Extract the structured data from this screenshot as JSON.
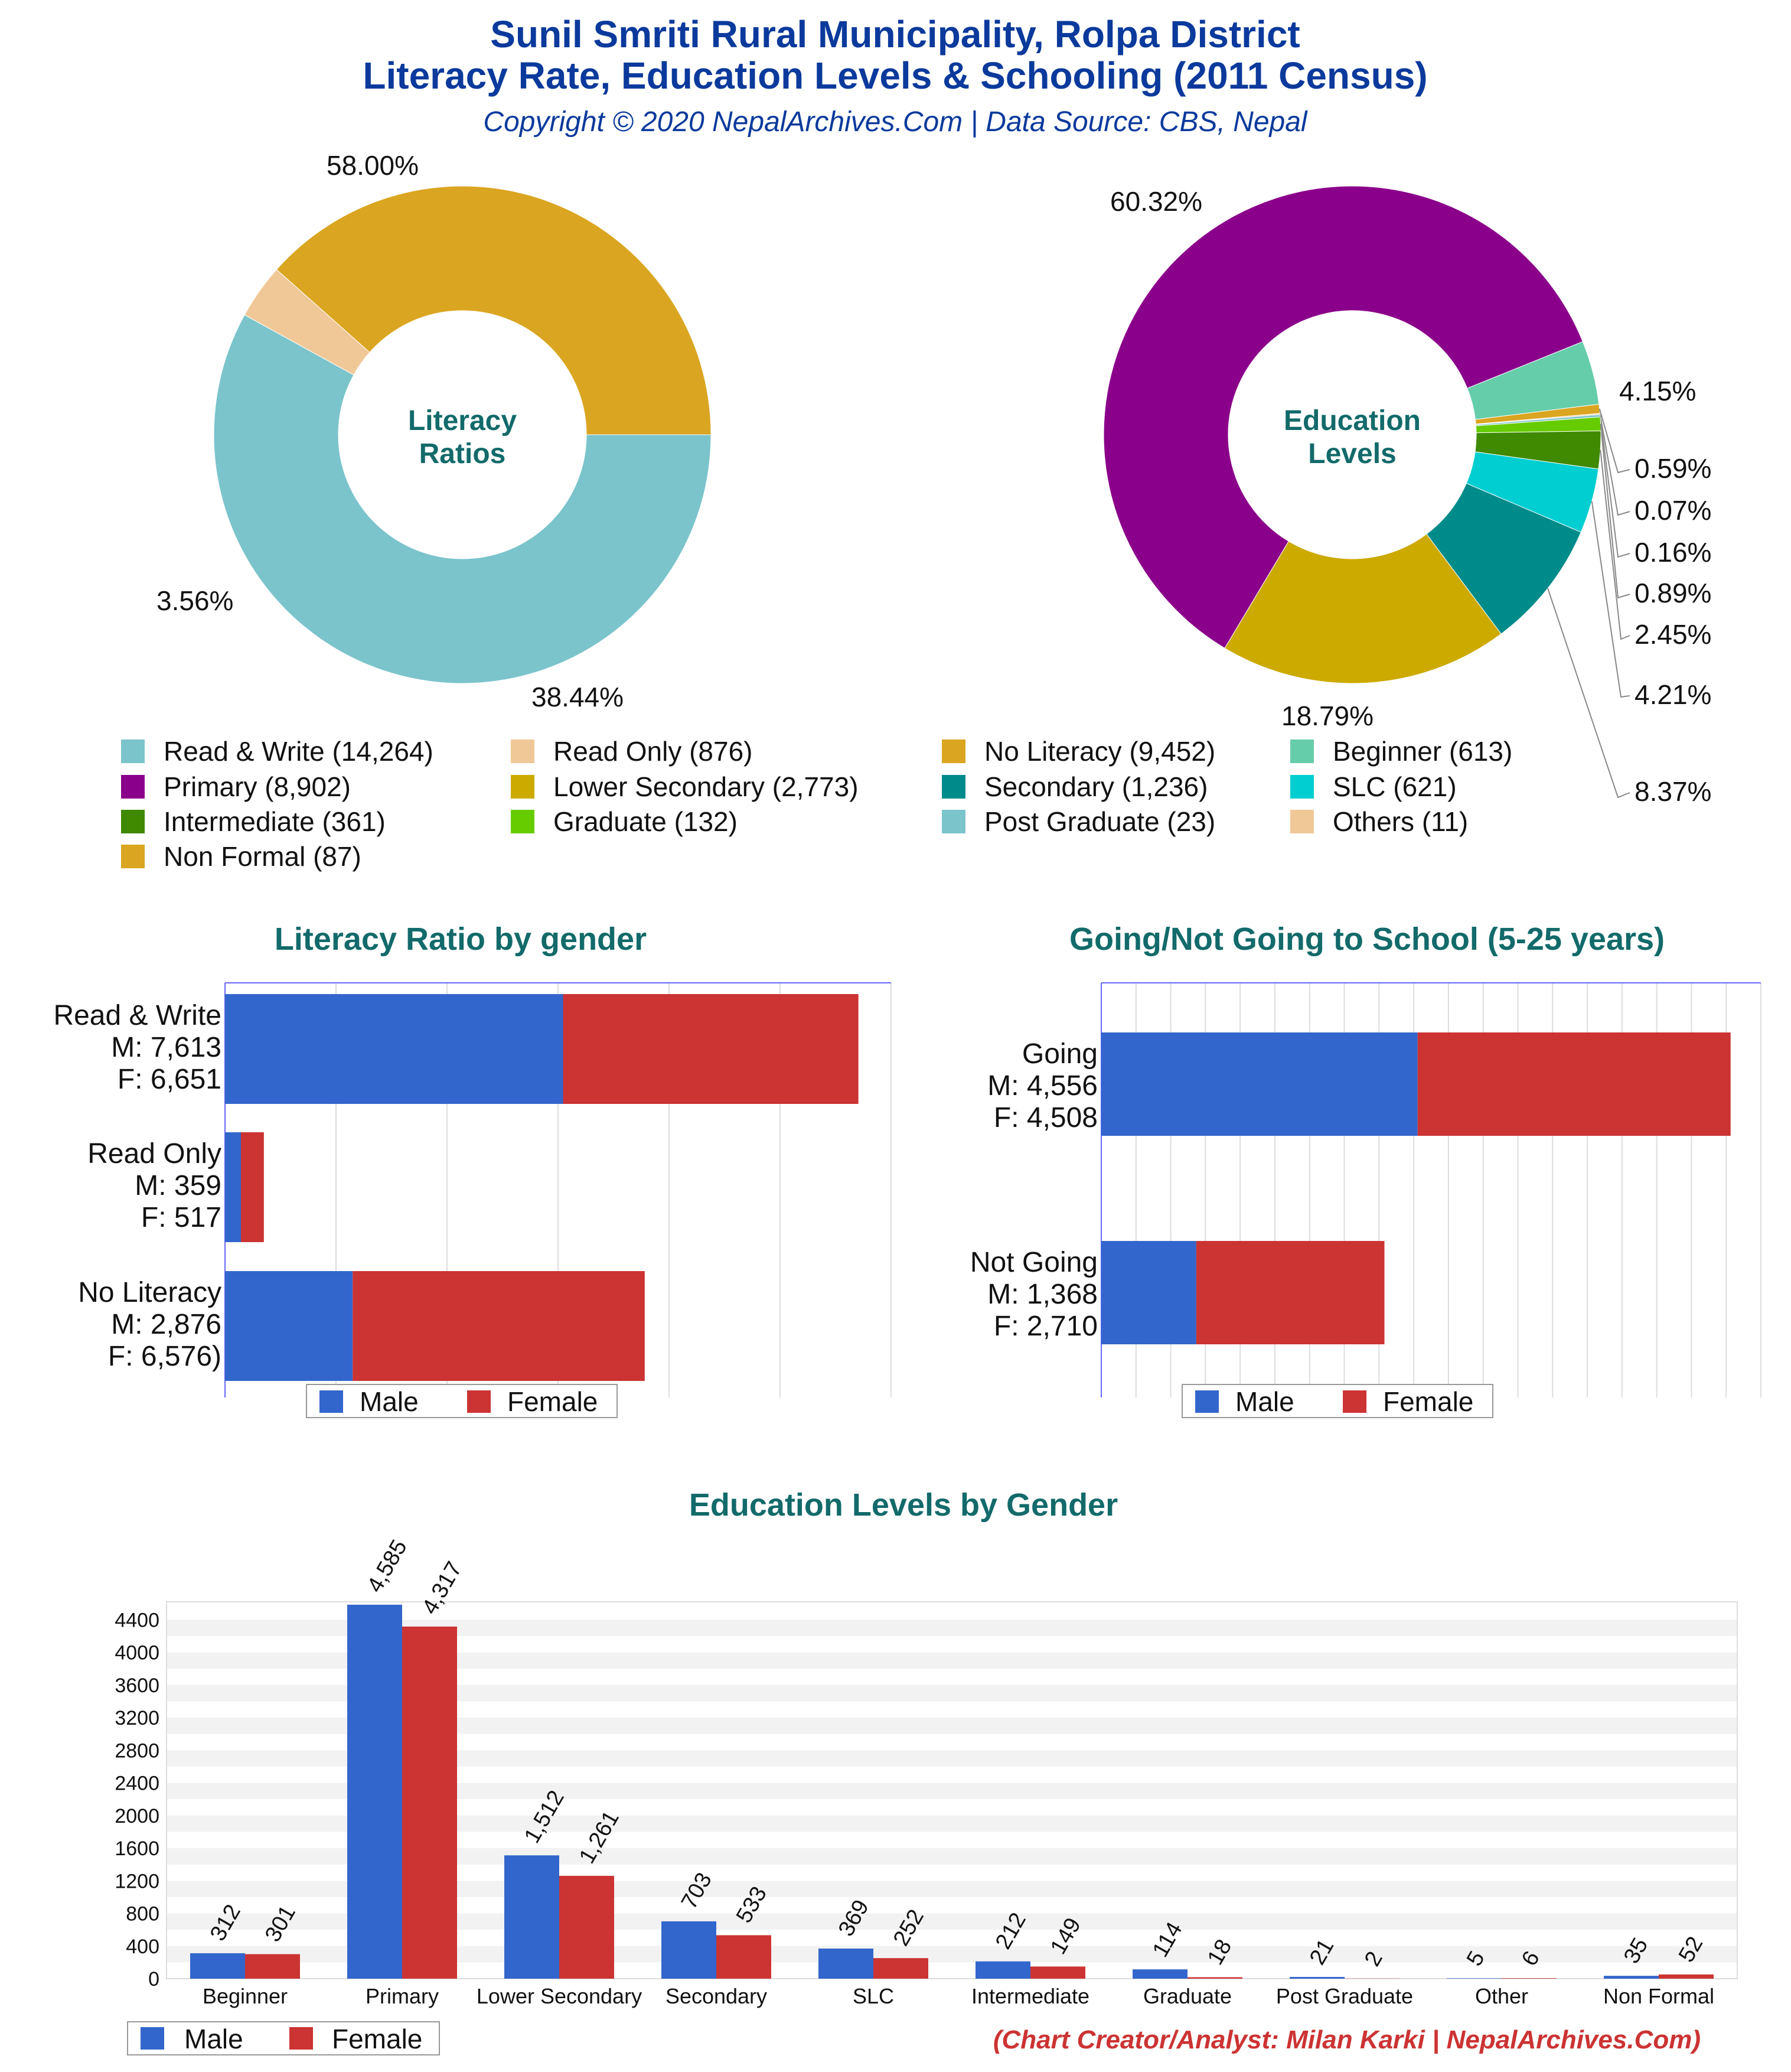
{
  "header": {
    "title_line1": "Sunil Smriti Rural Municipality, Rolpa District",
    "title_line2": "Literacy Rate, Education Levels & Schooling (2011 Census)",
    "subtitle": "Copyright © 2020 NepalArchives.Com | Data Source: CBS, Nepal"
  },
  "footer": {
    "credit": "(Chart Creator/Analyst: Milan Karki | NepalArchives.Com)"
  },
  "colors": {
    "title": "#0b3a9c",
    "heading": "#136a6a",
    "male": "#3366cc",
    "female": "#cc3333",
    "credit": "#cc3333"
  },
  "chart_data": [
    {
      "type": "pie",
      "title": "Literacy Ratios",
      "center_label": [
        "Literacy",
        "Ratios"
      ],
      "slices": [
        {
          "name": "Read & Write",
          "value": 14264,
          "pct_label": "58.00%",
          "color": "#7bc4cc"
        },
        {
          "name": "Read Only",
          "value": 876,
          "pct_label": "3.56%",
          "color": "#f0c897"
        },
        {
          "name": "No Literacy",
          "value": 9452,
          "pct_label": "38.44%",
          "color": "#daa520"
        }
      ]
    },
    {
      "type": "pie",
      "title": "Education Levels",
      "center_label": [
        "Education",
        "Levels"
      ],
      "slices": [
        {
          "name": "Beginner",
          "value": 613,
          "pct_label": "4.15%",
          "color": "#66cdaa"
        },
        {
          "name": "Non Formal",
          "value": 87,
          "pct_label": "0.59%",
          "color": "#daa520"
        },
        {
          "name": "Others",
          "value": 11,
          "pct_label": "0.07%",
          "color": "#f0c897"
        },
        {
          "name": "Post Graduate",
          "value": 23,
          "pct_label": "0.16%",
          "color": "#7bc4cc"
        },
        {
          "name": "Graduate",
          "value": 132,
          "pct_label": "0.89%",
          "color": "#66cc00"
        },
        {
          "name": "Intermediate",
          "value": 361,
          "pct_label": "2.45%",
          "color": "#3f8a00"
        },
        {
          "name": "SLC",
          "value": 621,
          "pct_label": "4.21%",
          "color": "#00ced1"
        },
        {
          "name": "Secondary",
          "value": 1236,
          "pct_label": "8.37%",
          "color": "#008b8b"
        },
        {
          "name": "Lower Secondary",
          "value": 2773,
          "pct_label": "18.79%",
          "color": "#ccaa00"
        },
        {
          "name": "Primary",
          "value": 8902,
          "pct_label": "60.32%",
          "color": "#8b008b"
        }
      ]
    },
    {
      "type": "bar",
      "orientation": "horizontal",
      "stacked": true,
      "title": "Literacy Ratio by gender",
      "categories": [
        {
          "lines": [
            "Read & Write",
            "M: 7,613",
            "F: 6,651"
          ]
        },
        {
          "lines": [
            "Read Only",
            "M: 359",
            "F: 517"
          ]
        },
        {
          "lines": [
            "No Literacy",
            "M: 2,876",
            "F: 6,576)"
          ]
        }
      ],
      "series": [
        {
          "name": "Male",
          "values": [
            7613,
            359,
            2876
          ]
        },
        {
          "name": "Female",
          "values": [
            6651,
            517,
            6576
          ]
        }
      ],
      "xlim": [
        0,
        15000
      ],
      "legend": "bottom"
    },
    {
      "type": "bar",
      "orientation": "horizontal",
      "stacked": true,
      "title": "Going/Not Going to School (5-25 years)",
      "categories": [
        {
          "lines": [
            "Going",
            "M: 4,556",
            "F: 4,508"
          ]
        },
        {
          "lines": [
            "Not Going",
            "M: 1,368",
            "F: 2,710"
          ]
        }
      ],
      "series": [
        {
          "name": "Male",
          "values": [
            4556,
            1368
          ]
        },
        {
          "name": "Female",
          "values": [
            4508,
            2710
          ]
        }
      ],
      "xlim": [
        0,
        9500
      ],
      "legend": "bottom"
    },
    {
      "type": "bar",
      "orientation": "vertical",
      "title": "Education Levels by Gender",
      "categories": [
        "Beginner",
        "Primary",
        "Lower Secondary",
        "Secondary",
        "SLC",
        "Intermediate",
        "Graduate",
        "Post Graduate",
        "Other",
        "Non Formal"
      ],
      "series": [
        {
          "name": "Male",
          "values": [
            312,
            4585,
            1512,
            703,
            369,
            212,
            114,
            21,
            5,
            35
          ],
          "labels": [
            "312",
            "4,585",
            "1,512",
            "703",
            "369",
            "212",
            "114",
            "21",
            "5",
            "35"
          ]
        },
        {
          "name": "Female",
          "values": [
            301,
            4317,
            1261,
            533,
            252,
            149,
            18,
            2,
            6,
            52
          ],
          "labels": [
            "301",
            "4,317",
            "1,261",
            "533",
            "252",
            "149",
            "18",
            "2",
            "6",
            "52"
          ]
        }
      ],
      "yticks": [
        "0",
        "400",
        "800",
        "1200",
        "1600",
        "2000",
        "2400",
        "2800",
        "3200",
        "3600",
        "4000",
        "4400"
      ],
      "ylim": [
        0,
        4620
      ],
      "legend": "bottom-left"
    }
  ],
  "legend_main": {
    "entries": [
      {
        "label": "Read & Write (14,264)",
        "color": "#7bc4cc"
      },
      {
        "label": "Read Only (876)",
        "color": "#f0c897"
      },
      {
        "label": "No Literacy (9,452)",
        "color": "#daa520"
      },
      {
        "label": "Beginner (613)",
        "color": "#66cdaa"
      },
      {
        "label": "Primary (8,902)",
        "color": "#8b008b"
      },
      {
        "label": "Lower Secondary (2,773)",
        "color": "#ccaa00"
      },
      {
        "label": "Secondary (1,236)",
        "color": "#008b8b"
      },
      {
        "label": "SLC (621)",
        "color": "#00ced1"
      },
      {
        "label": "Intermediate (361)",
        "color": "#3f8a00"
      },
      {
        "label": "Graduate (132)",
        "color": "#66cc00"
      },
      {
        "label": "Post Graduate (23)",
        "color": "#7bc4cc"
      },
      {
        "label": "Others (11)",
        "color": "#f0c897"
      },
      {
        "label": "Non Formal (87)",
        "color": "#daa520"
      }
    ]
  }
}
